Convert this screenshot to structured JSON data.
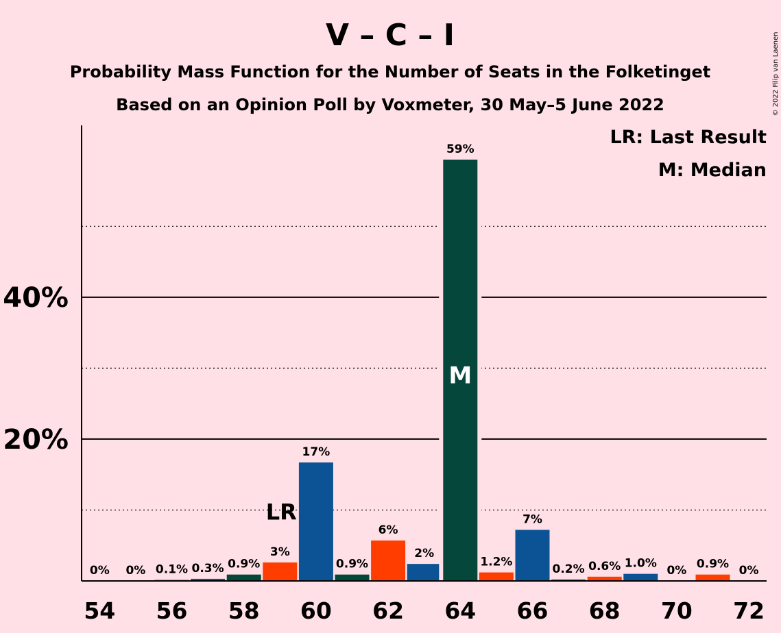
{
  "copyright": "© 2022 Filip van Laenen",
  "chart_data": {
    "type": "bar",
    "title": "V – C – I",
    "subtitle1": "Probability Mass Function for the Number of Seats in the Folketinget",
    "subtitle2": "Based on an Opinion Poll by Voxmeter, 30 May–5 June 2022",
    "legend": {
      "lr": "LR: Last Result",
      "m": "M: Median",
      "placement": "top-right"
    },
    "x": [
      54,
      55,
      56,
      57,
      58,
      59,
      60,
      61,
      62,
      63,
      64,
      65,
      66,
      67,
      68,
      69,
      70,
      71,
      72
    ],
    "values": [
      0,
      0,
      0.1,
      0.3,
      0.9,
      2.6,
      16.7,
      0.9,
      5.7,
      2.4,
      59.4,
      1.2,
      7.2,
      0.2,
      0.6,
      1.0,
      0,
      0.9,
      0
    ],
    "value_labels": [
      "0%",
      "0%",
      "0.1%",
      "0.3%",
      "0.9%",
      "3%",
      "17%",
      "0.9%",
      "6%",
      "2%",
      "59%",
      "1.2%",
      "7%",
      "0.2%",
      "0.6%",
      "1.0%",
      "0%",
      "0.9%",
      "0%"
    ],
    "colors": [
      "#0B5394",
      "#0B5394",
      "#0B5394",
      "#0B5394",
      "#06473C",
      "#FF3D00",
      "#0B5394",
      "#06473C",
      "#FF3D00",
      "#0B5394",
      "#06473C",
      "#FF3D00",
      "#0B5394",
      "#06473C",
      "#FF3D00",
      "#0B5394",
      "#06473C",
      "#FF3D00",
      "#0B5394"
    ],
    "x_tick_labels": [
      "54",
      "56",
      "58",
      "60",
      "62",
      "64",
      "66",
      "68",
      "70",
      "72"
    ],
    "y_ticks": [
      {
        "value": 20,
        "label": "20%"
      },
      {
        "value": 40,
        "label": "40%"
      }
    ],
    "dotted_gridlines": [
      10,
      30,
      50
    ],
    "last_result": {
      "seats": 59,
      "label": "LR"
    },
    "median": {
      "seats": 64,
      "label": "M"
    },
    "ylim": [
      0,
      64.5
    ]
  }
}
